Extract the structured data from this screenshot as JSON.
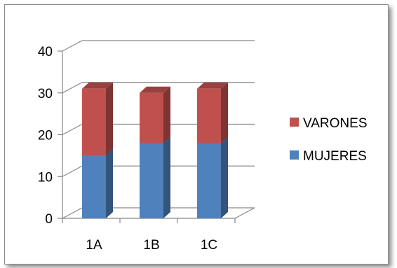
{
  "chart_data": {
    "type": "bar",
    "stacked": true,
    "style": "3d-column",
    "categories": [
      "1A",
      "1B",
      "1C"
    ],
    "series": [
      {
        "name": "MUJERES",
        "values": [
          15,
          18,
          18
        ],
        "color": "#4f81bd"
      },
      {
        "name": "VARONES",
        "values": [
          16,
          12,
          13
        ],
        "color": "#c0504d"
      }
    ],
    "ylim": [
      0,
      40
    ],
    "yticks": [
      "0",
      "10",
      "20",
      "30",
      "40"
    ],
    "grid": true,
    "legend_position": "right",
    "legend_order": [
      "VARONES",
      "MUJERES"
    ]
  },
  "colors": {
    "gridline": "#868686",
    "frame": "#8a8a8a"
  }
}
